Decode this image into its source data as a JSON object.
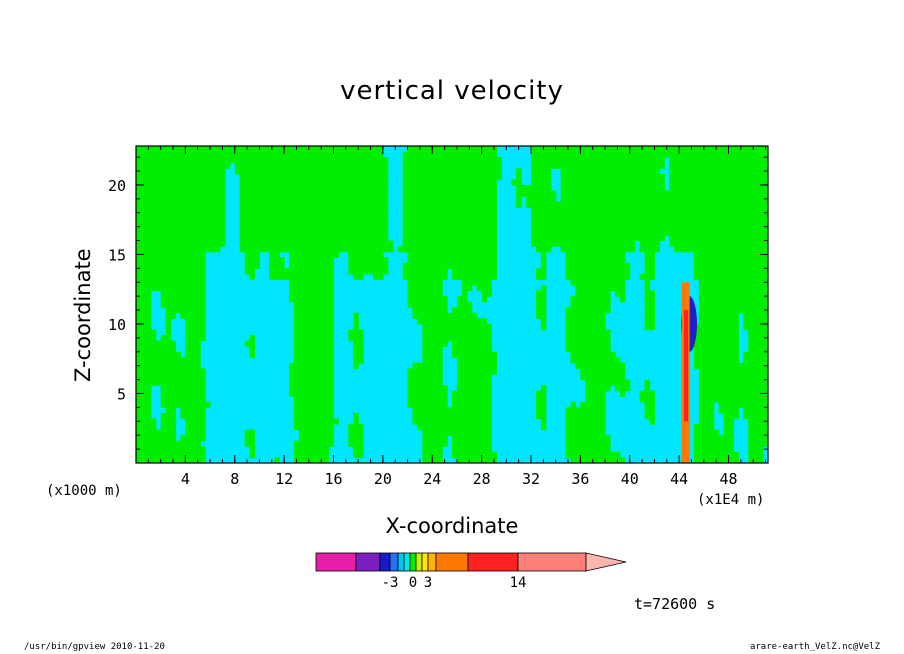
{
  "chart_data": {
    "type": "heatmap",
    "title": "vertical velocity",
    "xlabel": "X-coordinate",
    "ylabel": "Z-coordinate",
    "x_scale_note": "(x1000 m)",
    "x_multiplier_note": "(x1E4 m)",
    "x_ticks": [
      4,
      8,
      12,
      16,
      20,
      24,
      28,
      32,
      36,
      40,
      44,
      48
    ],
    "y_ticks": [
      5,
      10,
      15,
      20
    ],
    "xlim": [
      0,
      51.2
    ],
    "ylim": [
      0,
      22.8
    ],
    "legend": {
      "placement": "bottom",
      "tick_labels": [
        "-3",
        "0",
        "3",
        "14"
      ],
      "tick_values": [
        -3,
        0,
        3,
        14
      ],
      "colors": [
        "#e81ea8",
        "#7a20c0",
        "#1a1ac8",
        "#2a70f0",
        "#00c8f0",
        "#00e6e6",
        "#00ee00",
        "#c8f000",
        "#ffe600",
        "#ffb400",
        "#ff7800",
        "#ff2020",
        "#ff8078",
        "#ffb4b0"
      ]
    },
    "fill_colors": {
      "downdraft": "#00e6ff",
      "updraft": "#00ee00",
      "strong_up": "#ff2020",
      "strong_down": "#2020c8"
    },
    "annotation": "t=72600 s"
  },
  "footer": {
    "left": "/usr/bin/gpview   2010-11-20",
    "right": "arare-earth_VelZ.nc@VelZ"
  }
}
